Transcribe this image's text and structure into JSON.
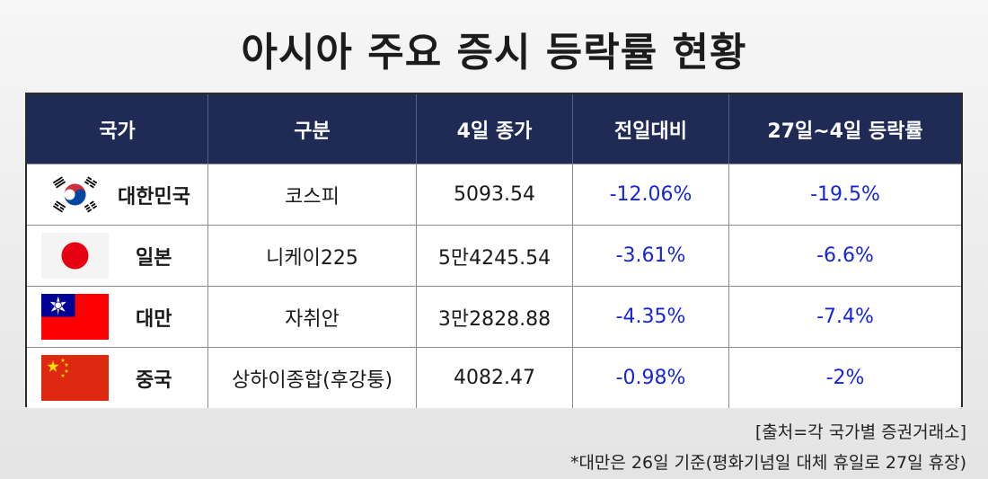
{
  "title": "아시아 주요 증시 등락률 현황",
  "table": {
    "headers": [
      "국가",
      "구분",
      "4일 종가",
      "전일대비",
      "27일~4일 등락률"
    ],
    "rows": [
      {
        "country": "대한민국",
        "flag_icon": "south-korea-flag-icon",
        "index": "코스피",
        "close": "5093.54",
        "day_change": "-12.06%",
        "period_change": "-19.5%"
      },
      {
        "country": "일본",
        "flag_icon": "japan-flag-icon",
        "index": "니케이225",
        "close": "5만4245.54",
        "day_change": "-3.61%",
        "period_change": "-6.6%"
      },
      {
        "country": "대만",
        "flag_icon": "taiwan-flag-icon",
        "index": "자취안",
        "close": "3만2828.88",
        "day_change": "-4.35%",
        "period_change": "-7.4%"
      },
      {
        "country": "중국",
        "flag_icon": "china-flag-icon",
        "index": "상하이종합(후강퉁)",
        "close": "4082.47",
        "day_change": "-0.98%",
        "period_change": "-2%"
      }
    ]
  },
  "source_note": "[출처=각 국가별 증권거래소]",
  "footnote": "*대만은 26일 기준(평화기념일 대체 휴일로 27일 휴장)",
  "colors": {
    "header_bg": "#1f2a55",
    "change_text": "#1626d6"
  }
}
